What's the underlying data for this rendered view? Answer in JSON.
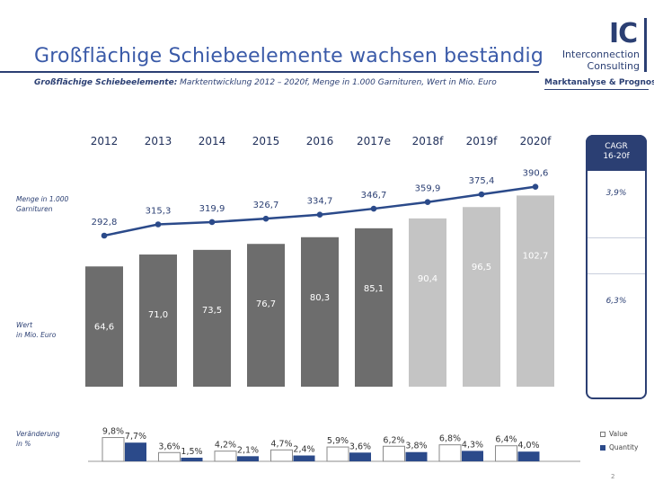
{
  "header": {
    "title": "Großflächige Schiebeelemente wachsen beständig",
    "subtitle_bold": "Großflächige Schiebeelemente:",
    "subtitle_rest": " Marktentwicklung 2012 – 2020f, Menge in 1.000 Garnituren, Wert in Mio. Euro",
    "section": "Marktanalyse & Prognose",
    "page_number": "2"
  },
  "logo": {
    "mark": "IC",
    "line1": "Interconnection",
    "line2": "Consulting"
  },
  "labels": {
    "quantity_line1": "Menge in 1.000",
    "quantity_line2": "Garnituren",
    "value_line1": "Wert",
    "value_line2": "in Mio. Euro",
    "change_line1": "Veränderung",
    "change_line2": "in %"
  },
  "cagr": {
    "header_line1": "CAGR",
    "header_line2": "16-20f",
    "quantity": "3,9%",
    "value": "6,3%"
  },
  "legend": {
    "value": "Value",
    "quantity": "Quantity"
  },
  "chart_data": [
    {
      "type": "bar",
      "categories": [
        "2012",
        "2013",
        "2014",
        "2015",
        "2016",
        "2017e",
        "2018f",
        "2019f",
        "2020f"
      ],
      "series": [
        {
          "name": "Wert in Mio. Euro",
          "values": [
            64.6,
            71.0,
            73.5,
            76.7,
            80.3,
            85.1,
            90.4,
            96.5,
            102.7
          ],
          "labels": [
            "64,6",
            "71,0",
            "73,5",
            "76,7",
            "80,3",
            "85,1",
            "90,4",
            "96,5",
            "102,7"
          ]
        }
      ],
      "forecast_from_index": 6,
      "colors": {
        "actual": "#6d6d6d",
        "forecast": "#c4c4c4"
      }
    },
    {
      "type": "line",
      "categories": [
        "2012",
        "2013",
        "2014",
        "2015",
        "2016",
        "2017e",
        "2018f",
        "2019f",
        "2020f"
      ],
      "series": [
        {
          "name": "Menge in 1.000 Garnituren",
          "values": [
            292.8,
            315.3,
            319.9,
            326.7,
            334.7,
            346.7,
            359.9,
            375.4,
            390.6
          ],
          "labels": [
            "292,8",
            "315,3",
            "319,9",
            "326,7",
            "334,7",
            "346,7",
            "359,9",
            "375,4",
            "390,6"
          ]
        }
      ],
      "color": "#2b4a8a"
    },
    {
      "type": "bar",
      "categories": [
        "2012",
        "2013",
        "2014",
        "2015",
        "2016",
        "2017e",
        "2018f",
        "2019f",
        "2020f"
      ],
      "series": [
        {
          "name": "Value",
          "values": [
            null,
            9.8,
            3.6,
            4.2,
            4.7,
            5.9,
            6.2,
            6.8,
            6.4
          ],
          "labels": [
            null,
            "9,8%",
            "3,6%",
            "4,2%",
            "4,7%",
            "5,9%",
            "6,2%",
            "6,8%",
            "6,4%"
          ]
        },
        {
          "name": "Quantity",
          "values": [
            null,
            7.7,
            1.5,
            2.1,
            2.4,
            3.6,
            3.8,
            4.3,
            4.0
          ],
          "labels": [
            null,
            "7,7%",
            "1,5%",
            "2,1%",
            "2,4%",
            "3,6%",
            "3,8%",
            "4,3%",
            "4,0%"
          ]
        }
      ],
      "colors": {
        "Value": "#ffffff",
        "Quantity": "#2b4a8a"
      }
    }
  ]
}
